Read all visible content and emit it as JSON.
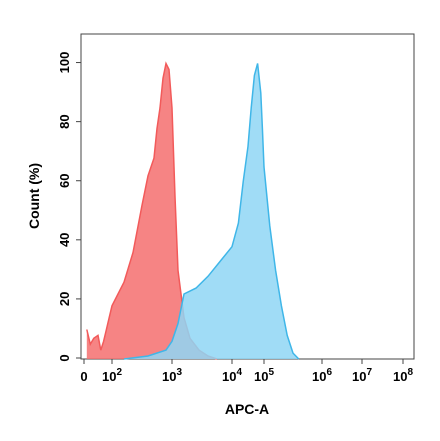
{
  "chart_data": {
    "type": "area",
    "title": "",
    "xlabel": "APC-A",
    "ylabel": "Count (%)",
    "x_scale": "log",
    "xlim": [
      "0",
      "10^8"
    ],
    "ylim": [
      0,
      110
    ],
    "grid": false,
    "legend": "none",
    "x_ticks": [
      {
        "value": "0",
        "base": "0",
        "exp": ""
      },
      {
        "value": "10^2",
        "base": "10",
        "exp": "2"
      },
      {
        "value": "10^3",
        "base": "10",
        "exp": "3"
      },
      {
        "value": "10^4",
        "base": "10",
        "exp": "4"
      },
      {
        "value": "10^5",
        "base": "10",
        "exp": "5"
      },
      {
        "value": "10^6",
        "base": "10",
        "exp": "6"
      },
      {
        "value": "10^7",
        "base": "10",
        "exp": "7"
      },
      {
        "value": "10^8",
        "base": "10",
        "exp": "8"
      }
    ],
    "y_ticks": [
      "0",
      "20",
      "40",
      "60",
      "80",
      "100"
    ],
    "series": [
      {
        "color": "#f25a5a",
        "fill": "#f46e6e",
        "x_log10": [
          0.2,
          0.45,
          0.7,
          1.0,
          1.2,
          1.4,
          1.6,
          1.8,
          2.0,
          2.2,
          2.35,
          2.5,
          2.6,
          2.7,
          2.75,
          2.8,
          2.85,
          2.9,
          2.95,
          3.0,
          3.05,
          3.1,
          3.2,
          3.3,
          3.45,
          3.6,
          3.75
        ],
        "y": [
          10,
          5,
          7,
          8,
          3,
          6,
          10,
          14,
          18,
          26,
          36,
          52,
          62,
          68,
          78,
          85,
          95,
          100,
          98,
          85,
          55,
          30,
          14,
          7,
          3,
          1,
          0
        ]
      },
      {
        "color": "#3fb6e8",
        "fill": "#8fd6f4",
        "x_log10": [
          2.2,
          2.6,
          2.9,
          3.0,
          3.1,
          3.2,
          3.4,
          3.6,
          3.8,
          4.0,
          4.2,
          4.35,
          4.5,
          4.6,
          4.7,
          4.8,
          4.9,
          4.95,
          5.0,
          5.05,
          5.1,
          5.2,
          5.3,
          5.4,
          5.5,
          5.6
        ],
        "y": [
          0,
          1,
          3,
          6,
          12,
          22,
          24,
          28,
          33,
          38,
          46,
          60,
          72,
          85,
          96,
          100,
          90,
          78,
          65,
          55,
          45,
          30,
          18,
          8,
          2,
          0
        ]
      }
    ]
  }
}
